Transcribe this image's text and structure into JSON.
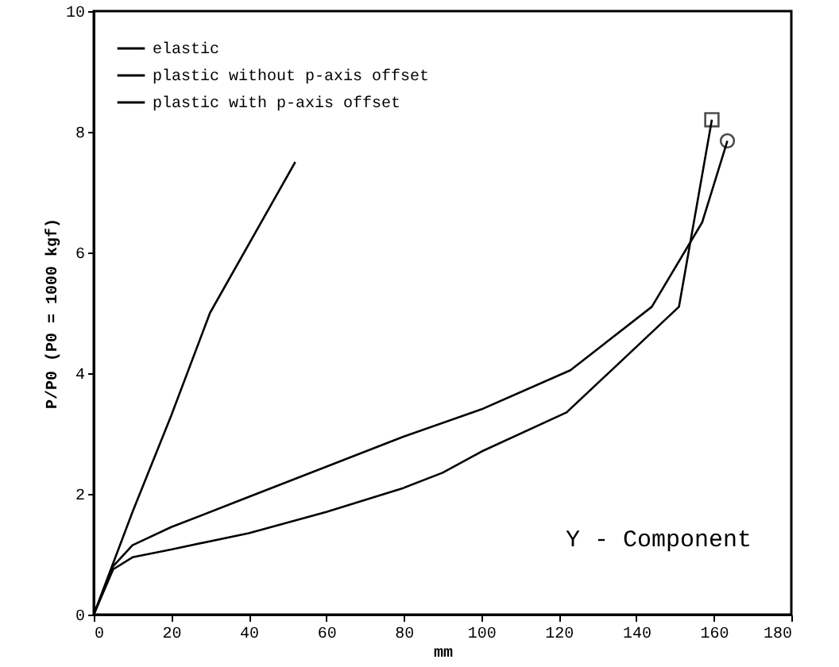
{
  "chart_data": {
    "type": "line",
    "xlabel": "mm",
    "ylabel": "P/P0 (P0 = 1000 kgf)",
    "xlim": [
      0,
      180
    ],
    "xticks": [
      0,
      20,
      40,
      60,
      80,
      100,
      120,
      140,
      160,
      180
    ],
    "ylim": [
      0,
      10
    ],
    "yticks": [
      0,
      2,
      4,
      6,
      8,
      10
    ],
    "grid": false,
    "legend": "top left",
    "annotations": [
      "Y - Component"
    ],
    "series": [
      {
        "name": "elastic",
        "color": "#000000",
        "x": [
          0,
          10,
          20,
          30,
          52
        ],
        "values": [
          0,
          1.7,
          3.3,
          5.0,
          7.5
        ]
      },
      {
        "name": "plastic without p-axis offset",
        "color": "#000000",
        "x": [
          0,
          5,
          10,
          20,
          40,
          60,
          80,
          100,
          123,
          144,
          157,
          163.5
        ],
        "values": [
          0,
          0.8,
          1.15,
          1.45,
          1.95,
          2.45,
          2.95,
          3.4,
          4.05,
          5.1,
          6.5,
          7.85
        ]
      },
      {
        "name": "plastic with p-axis offset",
        "color": "#000000",
        "x": [
          0,
          5,
          10,
          20,
          40,
          60,
          80,
          90,
          100,
          122,
          151,
          159.5
        ],
        "values": [
          0,
          0.75,
          0.95,
          1.08,
          1.35,
          1.7,
          2.1,
          2.35,
          2.7,
          3.35,
          5.1,
          8.2
        ]
      },
      {
        "type": "scatter",
        "marker": "circle",
        "color": "#000000",
        "x": [
          163.5
        ],
        "values": [
          7.85
        ]
      },
      {
        "type": "scatter",
        "marker": "square",
        "color": "#000000",
        "x": [
          159.5
        ],
        "values": [
          8.2
        ]
      }
    ]
  }
}
